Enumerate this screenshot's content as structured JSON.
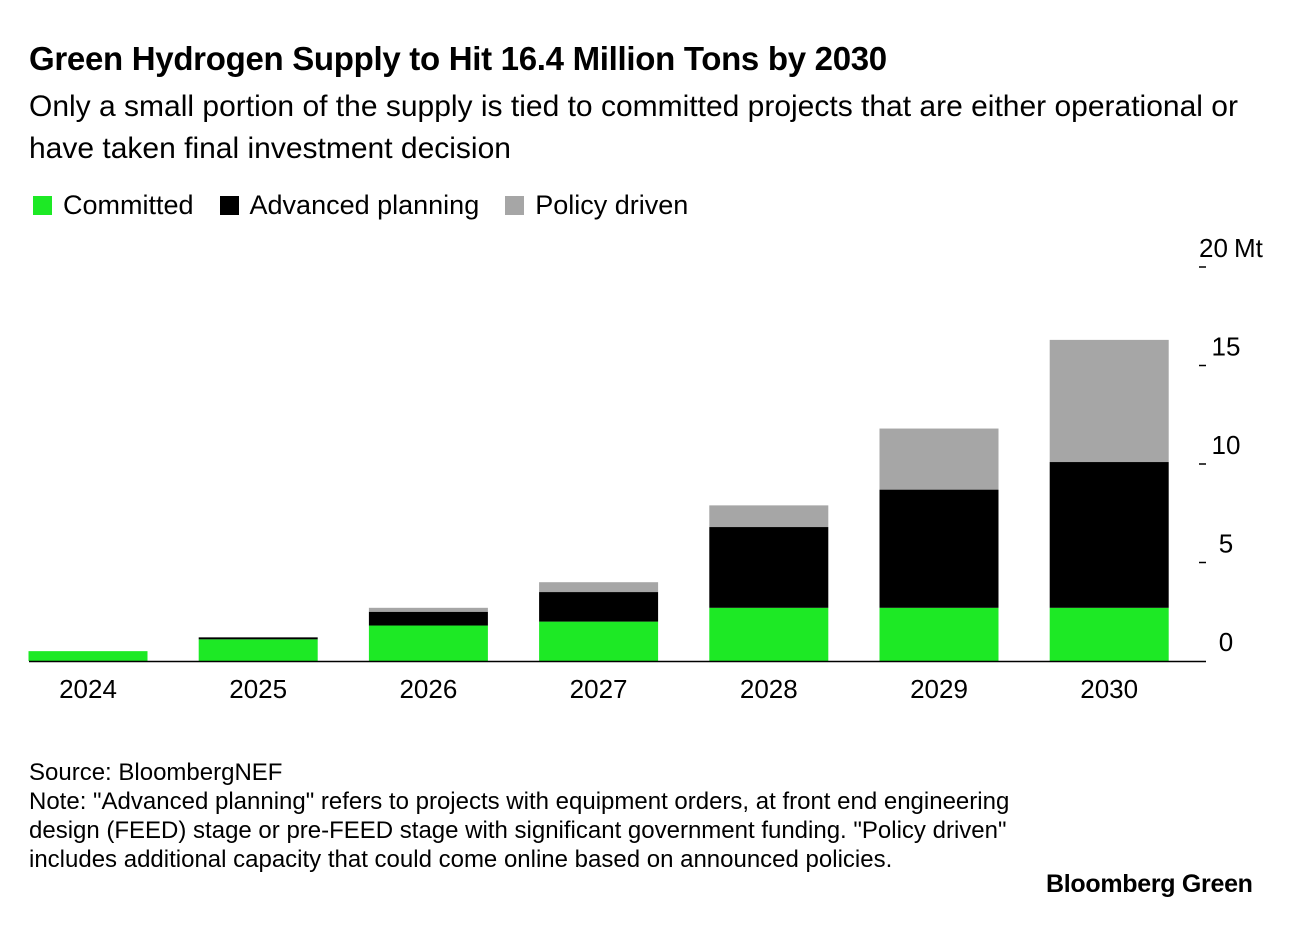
{
  "header": {
    "title": "Green Hydrogen Supply to Hit 16.4 Million Tons by 2030",
    "subtitle": "Only a small portion of the supply is tied to committed projects that are either operational or have taken final investment decision"
  },
  "legend": [
    {
      "label": "Committed",
      "color": "#1de925"
    },
    {
      "label": "Advanced planning",
      "color": "#000000"
    },
    {
      "label": "Policy driven",
      "color": "#a6a6a6"
    }
  ],
  "chart_data": {
    "type": "bar",
    "stacked": true,
    "categories": [
      "2024",
      "2025",
      "2026",
      "2027",
      "2028",
      "2029",
      "2030"
    ],
    "series": [
      {
        "name": "Committed",
        "color": "#1de925",
        "values": [
          0.5,
          1.1,
          1.8,
          2.0,
          2.7,
          2.7,
          2.7
        ]
      },
      {
        "name": "Advanced planning",
        "color": "#000000",
        "values": [
          0.0,
          0.1,
          0.7,
          1.5,
          4.1,
          6.0,
          7.4
        ]
      },
      {
        "name": "Policy driven",
        "color": "#a6a6a6",
        "values": [
          0.0,
          0.0,
          0.2,
          0.5,
          1.1,
          3.1,
          6.2
        ]
      }
    ],
    "yticks": [
      0,
      5,
      10,
      15,
      20
    ],
    "ytick_labels": [
      "0",
      "5",
      "10",
      "15",
      "20"
    ],
    "yunit": "Mt",
    "ylim": [
      0,
      20
    ],
    "grid": false,
    "legend_position": "top-left",
    "axis_side": "right"
  },
  "footer": {
    "source": "Source: BloombergNEF",
    "note": "Note: \"Advanced planning\" refers to projects with equipment orders, at front end engineering design (FEED) stage or pre-FEED stage with significant government funding. \"Policy driven\" includes additional capacity that could come online based on announced policies."
  },
  "brand": "Bloomberg Green"
}
